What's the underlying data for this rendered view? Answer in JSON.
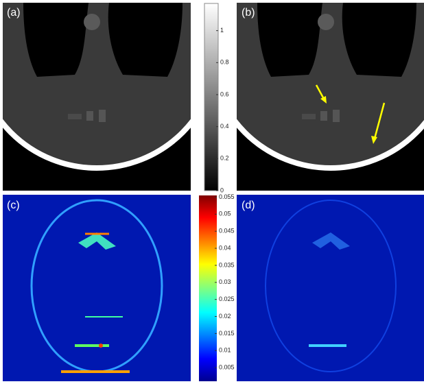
{
  "panels": [
    {
      "label": "(a)"
    },
    {
      "label": "(b)"
    },
    {
      "label": "(c)"
    },
    {
      "label": "(d)"
    }
  ],
  "colorbars": [
    {
      "lim": [
        0,
        1.17
      ],
      "ticks": [
        0,
        0.2,
        0.4,
        0.6,
        0.8,
        1
      ]
    },
    {
      "lim": [
        0.001,
        0.0555
      ],
      "ticks": [
        0.005,
        0.01,
        0.015,
        0.02,
        0.025,
        0.03,
        0.035,
        0.04,
        0.045,
        0.05,
        0.055
      ]
    }
  ]
}
